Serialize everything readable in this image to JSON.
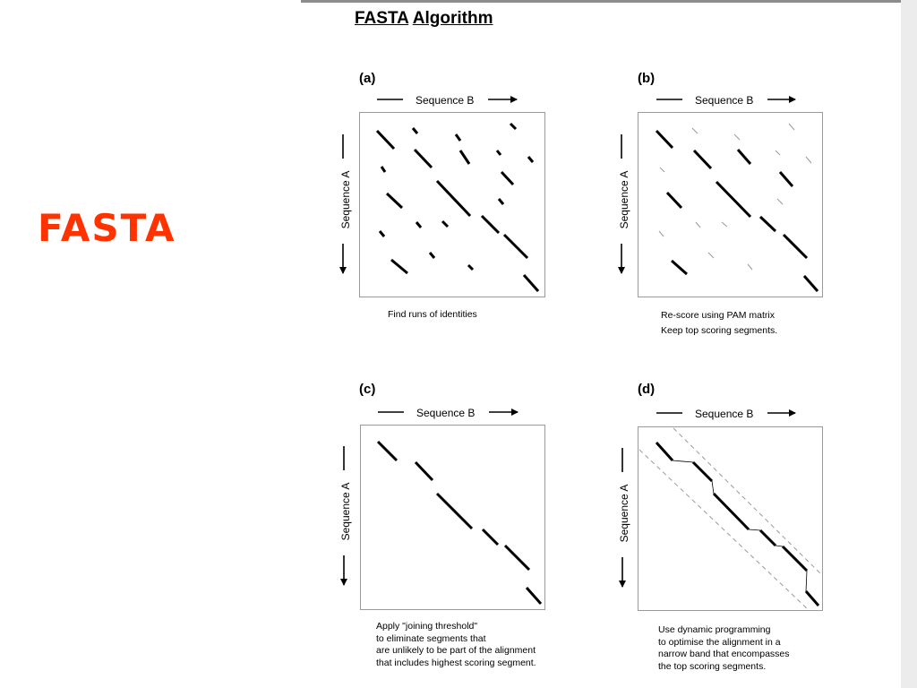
{
  "slide": {
    "title": "FASTA"
  },
  "figure": {
    "title_word1": "FASTA",
    "title_word2": "Algorithm",
    "x_axis_label": "Sequence B",
    "y_axis_label": "Sequence A",
    "panels": [
      {
        "label": "(a)",
        "caption": [
          "Find runs of identities"
        ]
      },
      {
        "label": "(b)",
        "caption": [
          "Re-score using PAM matrix",
          "Keep top scoring segments."
        ]
      },
      {
        "label": "(c)",
        "caption": [
          "Apply \"joining threshold\"",
          "to eliminate segments that",
          "are unlikely to be part of the alignment",
          "that includes highest scoring segment."
        ]
      },
      {
        "label": "(d)",
        "caption": [
          "Use dynamic programming",
          "to optimise the alignment in a",
          "narrow band that encompasses",
          "the top scoring segments."
        ]
      }
    ]
  }
}
